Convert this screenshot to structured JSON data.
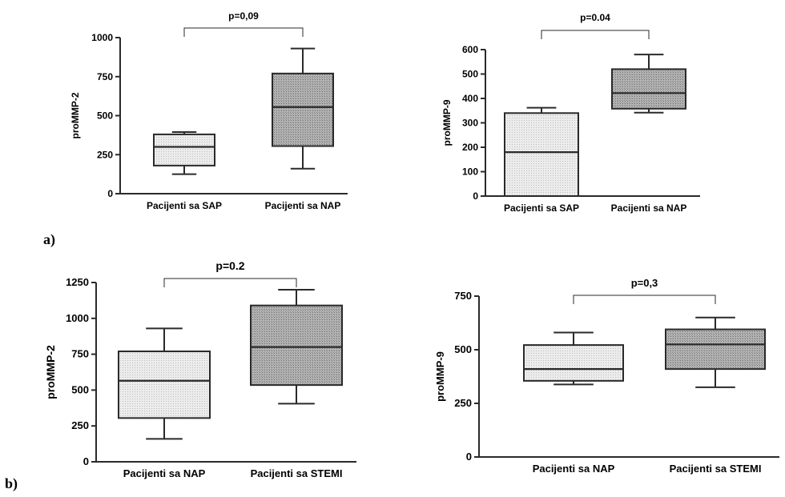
{
  "panel_labels": {
    "a": "a)",
    "b": "b)"
  },
  "colors": {
    "light_box": "#e8e8e8",
    "dark_box": "#a6a6a6",
    "line": "#2a2a2a"
  },
  "chart_data": [
    {
      "id": "a-left",
      "type": "box",
      "ylabel": "proMMP-2",
      "ylim": [
        0,
        1000
      ],
      "yticks": [
        0,
        250,
        500,
        750,
        1000
      ],
      "categories": [
        "Pacijenti sa SAP",
        "Pacijenti sa NAP"
      ],
      "boxes": [
        {
          "min": 125,
          "q1": 180,
          "median": 300,
          "q3": 380,
          "max": 395,
          "fill": "light"
        },
        {
          "min": 160,
          "q1": 305,
          "median": 555,
          "q3": 770,
          "max": 930,
          "fill": "dark"
        }
      ],
      "annotation": "p=0,09"
    },
    {
      "id": "a-right",
      "type": "box",
      "ylabel": "proMMP-9",
      "ylim": [
        0,
        600
      ],
      "yticks": [
        0,
        100,
        200,
        300,
        400,
        500,
        600
      ],
      "categories": [
        "Pacijenti sa SAP",
        "Pacijenti sa NAP"
      ],
      "boxes": [
        {
          "min": 0,
          "q1": 0,
          "median": 180,
          "q3": 340,
          "max": 362,
          "fill": "light"
        },
        {
          "min": 342,
          "q1": 358,
          "median": 422,
          "q3": 520,
          "max": 580,
          "fill": "dark"
        }
      ],
      "annotation": "p=0.04"
    },
    {
      "id": "b-left",
      "type": "box",
      "ylabel": "proMMP-2",
      "ylim": [
        0,
        1250
      ],
      "yticks": [
        0,
        250,
        500,
        750,
        1000,
        1250
      ],
      "categories": [
        "Pacijenti sa NAP",
        "Pacijenti sa STEMI"
      ],
      "boxes": [
        {
          "min": 160,
          "q1": 305,
          "median": 565,
          "q3": 770,
          "max": 930,
          "fill": "light"
        },
        {
          "min": 405,
          "q1": 535,
          "median": 800,
          "q3": 1090,
          "max": 1200,
          "fill": "dark"
        }
      ],
      "annotation": "p=0.2"
    },
    {
      "id": "b-right",
      "type": "box",
      "ylabel": "proMMP-9",
      "ylim": [
        0,
        750
      ],
      "yticks": [
        0,
        250,
        500,
        750
      ],
      "categories": [
        "Pacijenti sa NAP",
        "Pacijenti sa STEMI"
      ],
      "boxes": [
        {
          "min": 338,
          "q1": 355,
          "median": 410,
          "q3": 522,
          "max": 580,
          "fill": "light"
        },
        {
          "min": 325,
          "q1": 410,
          "median": 525,
          "q3": 595,
          "max": 650,
          "fill": "dark"
        }
      ],
      "annotation": "p=0,3"
    }
  ]
}
